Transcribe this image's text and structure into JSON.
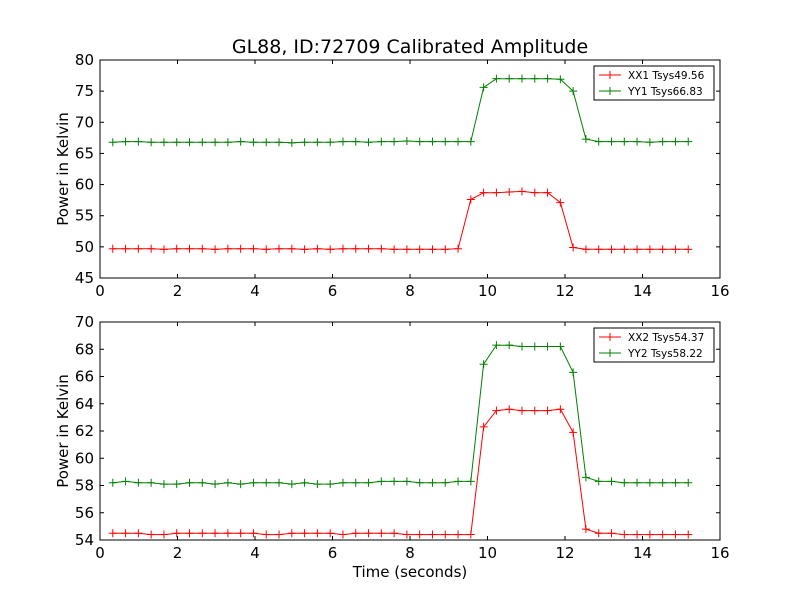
{
  "figure": {
    "title": "GL88, ID:72709 Calibrated Amplitude"
  },
  "chart_data": [
    {
      "type": "line",
      "title": "GL88, ID:72709 Calibrated Amplitude",
      "xlabel": "",
      "ylabel": "Power in Kelvin",
      "xlim": [
        0,
        16
      ],
      "ylim": [
        45,
        80
      ],
      "xticks": [
        0,
        2,
        4,
        6,
        8,
        10,
        12,
        14,
        16
      ],
      "yticks": [
        45,
        50,
        55,
        60,
        65,
        70,
        75,
        80
      ],
      "grid": false,
      "legend_position": "top-right",
      "x": [
        0.33,
        0.66,
        0.99,
        1.32,
        1.65,
        1.98,
        2.31,
        2.64,
        2.97,
        3.3,
        3.63,
        3.96,
        4.29,
        4.62,
        4.95,
        5.28,
        5.61,
        5.94,
        6.27,
        6.6,
        6.93,
        7.26,
        7.59,
        7.92,
        8.25,
        8.58,
        8.91,
        9.24,
        9.57,
        9.9,
        10.23,
        10.56,
        10.89,
        11.22,
        11.55,
        11.88,
        12.21,
        12.54,
        12.87,
        13.2,
        13.53,
        13.86,
        14.19,
        14.52,
        14.85,
        15.18
      ],
      "series": [
        {
          "name": "XX1 Tsys49.56",
          "color": "#ff0000",
          "values": [
            49.7,
            49.7,
            49.7,
            49.7,
            49.6,
            49.7,
            49.7,
            49.7,
            49.6,
            49.7,
            49.7,
            49.7,
            49.6,
            49.7,
            49.7,
            49.6,
            49.7,
            49.6,
            49.7,
            49.7,
            49.7,
            49.7,
            49.6,
            49.6,
            49.6,
            49.6,
            49.6,
            49.7,
            57.6,
            58.7,
            58.7,
            58.8,
            58.9,
            58.7,
            58.7,
            57.1,
            49.9,
            49.6,
            49.6,
            49.6,
            49.6,
            49.6,
            49.6,
            49.6,
            49.6,
            49.6
          ]
        },
        {
          "name": "YY1 Tsys66.83",
          "color": "#008000",
          "values": [
            66.8,
            66.9,
            66.9,
            66.8,
            66.8,
            66.8,
            66.8,
            66.8,
            66.8,
            66.8,
            66.9,
            66.8,
            66.8,
            66.8,
            66.7,
            66.8,
            66.8,
            66.8,
            66.9,
            66.9,
            66.8,
            66.9,
            66.9,
            67.0,
            66.9,
            66.9,
            66.9,
            66.9,
            66.9,
            75.6,
            77.0,
            77.0,
            77.0,
            77.0,
            77.0,
            76.9,
            75.0,
            67.3,
            66.9,
            66.9,
            66.9,
            66.9,
            66.8,
            66.9,
            66.9,
            66.9
          ]
        }
      ]
    },
    {
      "type": "line",
      "title": "",
      "xlabel": "Time (seconds)",
      "ylabel": "Power in Kelvin",
      "xlim": [
        0,
        16
      ],
      "ylim": [
        54,
        70
      ],
      "xticks": [
        0,
        2,
        4,
        6,
        8,
        10,
        12,
        14,
        16
      ],
      "yticks": [
        54,
        56,
        58,
        60,
        62,
        64,
        66,
        68,
        70
      ],
      "grid": false,
      "legend_position": "top-right",
      "x": [
        0.33,
        0.66,
        0.99,
        1.32,
        1.65,
        1.98,
        2.31,
        2.64,
        2.97,
        3.3,
        3.63,
        3.96,
        4.29,
        4.62,
        4.95,
        5.28,
        5.61,
        5.94,
        6.27,
        6.6,
        6.93,
        7.26,
        7.59,
        7.92,
        8.25,
        8.58,
        8.91,
        9.24,
        9.57,
        9.9,
        10.23,
        10.56,
        10.89,
        11.22,
        11.55,
        11.88,
        12.21,
        12.54,
        12.87,
        13.2,
        13.53,
        13.86,
        14.19,
        14.52,
        14.85,
        15.18
      ],
      "series": [
        {
          "name": "XX2 Tsys54.37",
          "color": "#ff0000",
          "values": [
            54.5,
            54.5,
            54.5,
            54.4,
            54.4,
            54.5,
            54.5,
            54.5,
            54.5,
            54.5,
            54.5,
            54.5,
            54.4,
            54.4,
            54.5,
            54.5,
            54.5,
            54.5,
            54.4,
            54.5,
            54.5,
            54.5,
            54.5,
            54.4,
            54.4,
            54.4,
            54.4,
            54.4,
            54.4,
            62.3,
            63.5,
            63.6,
            63.5,
            63.5,
            63.5,
            63.6,
            61.9,
            54.8,
            54.5,
            54.5,
            54.4,
            54.4,
            54.4,
            54.4,
            54.4,
            54.4
          ]
        },
        {
          "name": "YY2 Tsys58.22",
          "color": "#008000",
          "values": [
            58.2,
            58.3,
            58.2,
            58.2,
            58.1,
            58.1,
            58.2,
            58.2,
            58.1,
            58.2,
            58.1,
            58.2,
            58.2,
            58.2,
            58.1,
            58.2,
            58.1,
            58.1,
            58.2,
            58.2,
            58.2,
            58.3,
            58.3,
            58.3,
            58.2,
            58.2,
            58.2,
            58.3,
            58.3,
            66.9,
            68.3,
            68.3,
            68.2,
            68.2,
            68.2,
            68.2,
            66.3,
            58.6,
            58.3,
            58.3,
            58.2,
            58.2,
            58.2,
            58.2,
            58.2,
            58.2
          ]
        }
      ]
    }
  ]
}
